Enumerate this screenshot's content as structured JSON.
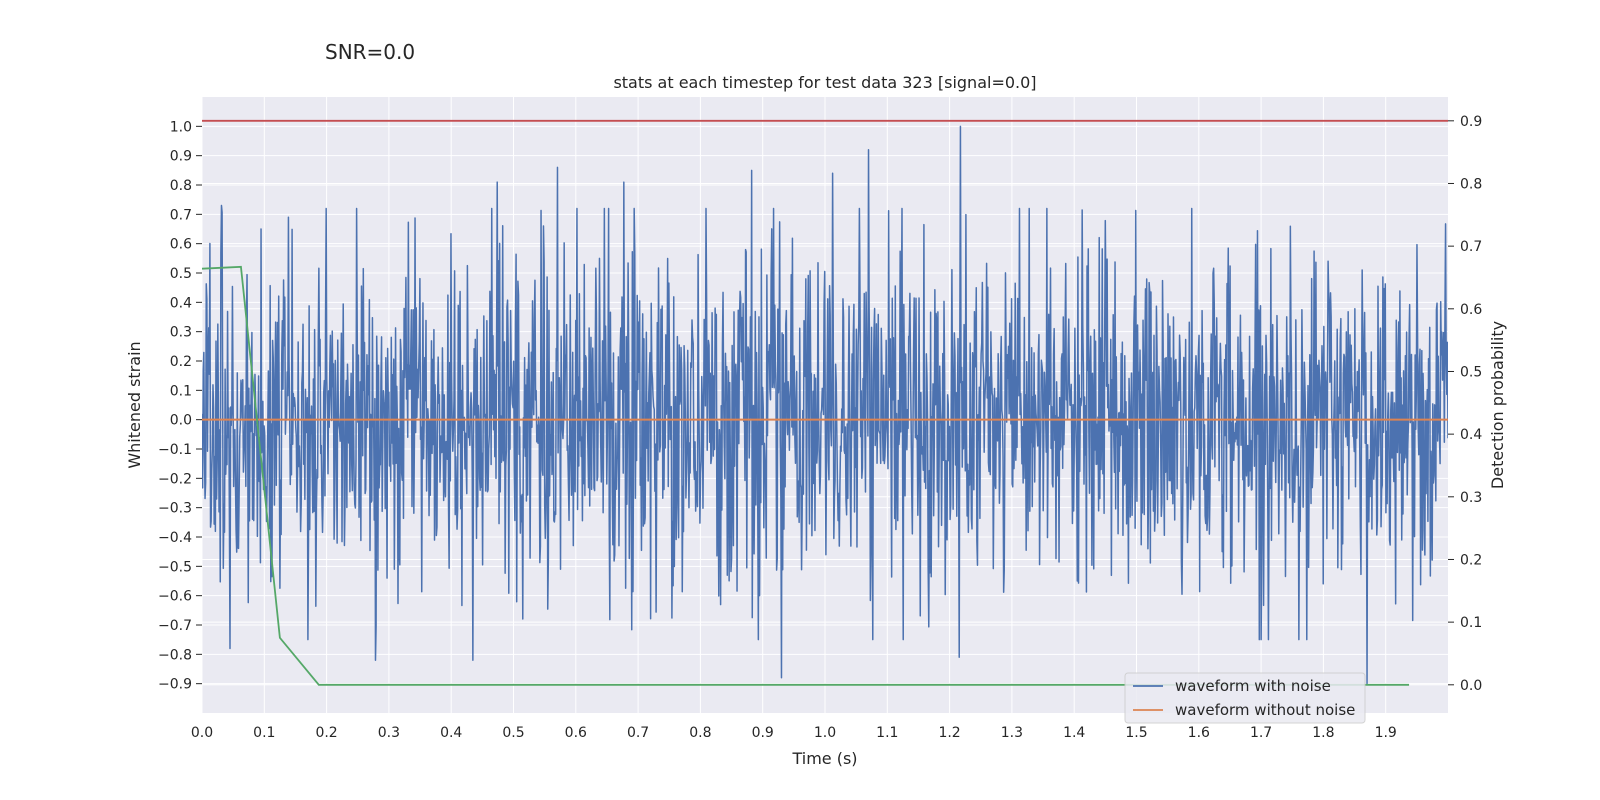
{
  "figure": {
    "suptitle": "SNR=0.0"
  },
  "chart_data": {
    "type": "line",
    "title": "stats at each timestep for test data 323 [signal=0.0]",
    "xlabel": "Time (s)",
    "ylabel": "Whitened strain",
    "y2label": "Detection probability",
    "xlim": [
      0.0,
      2.0
    ],
    "ylim": [
      -1.0,
      1.1
    ],
    "y2lim": [
      -0.045,
      0.938
    ],
    "xticks": [
      "0.0",
      "0.1",
      "0.2",
      "0.3",
      "0.4",
      "0.5",
      "0.6",
      "0.7",
      "0.8",
      "0.9",
      "1.0",
      "1.1",
      "1.2",
      "1.3",
      "1.4",
      "1.5",
      "1.6",
      "1.7",
      "1.8",
      "1.9"
    ],
    "yticks": [
      "1.0",
      "0.9",
      "0.8",
      "0.7",
      "0.6",
      "0.5",
      "0.4",
      "0.3",
      "0.2",
      "0.1",
      "0.0",
      "−0.1",
      "−0.2",
      "−0.3",
      "−0.4",
      "−0.5",
      "−0.6",
      "−0.7",
      "−0.8",
      "−0.9"
    ],
    "y2ticks": [
      "0.9",
      "0.8",
      "0.7",
      "0.6",
      "0.5",
      "0.4",
      "0.3",
      "0.2",
      "0.1",
      "0.0"
    ],
    "grid": true,
    "legend_position": "lower-right",
    "series": [
      {
        "name": "waveform with noise",
        "color": "#4c72b0",
        "axis": "left",
        "kind": "noise",
        "n_points": 2048,
        "x_range": [
          0.0,
          2.0
        ],
        "std": 0.28,
        "peaks": [
          {
            "x": 0.031,
            "y": 0.73
          },
          {
            "x": 0.045,
            "y": -0.78
          },
          {
            "x": 0.474,
            "y": 0.81
          },
          {
            "x": 0.571,
            "y": 0.86
          },
          {
            "x": 0.677,
            "y": 0.81
          },
          {
            "x": 0.882,
            "y": 0.85
          },
          {
            "x": 0.93,
            "y": -0.88
          },
          {
            "x": 1.012,
            "y": 0.84
          },
          {
            "x": 1.07,
            "y": 0.92
          },
          {
            "x": 1.217,
            "y": 1.0
          },
          {
            "x": 1.215,
            "y": -0.81
          },
          {
            "x": 1.87,
            "y": -0.9
          },
          {
            "x": 0.278,
            "y": -0.82
          },
          {
            "x": 0.435,
            "y": -0.82
          }
        ]
      },
      {
        "name": "waveform without noise",
        "color": "#dd8452",
        "axis": "left",
        "x": [
          0.0,
          2.0
        ],
        "y": [
          0.0,
          0.0
        ]
      },
      {
        "name": "",
        "color": "#55a868",
        "axis": "right",
        "x": [
          0.0,
          0.0625,
          0.125,
          0.1875,
          0.25,
          0.5,
          1.0,
          1.5,
          1.9375
        ],
        "y": [
          0.664,
          0.667,
          0.075,
          0.0,
          0.0,
          0.0,
          0.0,
          0.0,
          0.0
        ]
      }
    ],
    "threshold": {
      "axis": "right",
      "y": 0.9,
      "color": "#c44e52"
    }
  }
}
